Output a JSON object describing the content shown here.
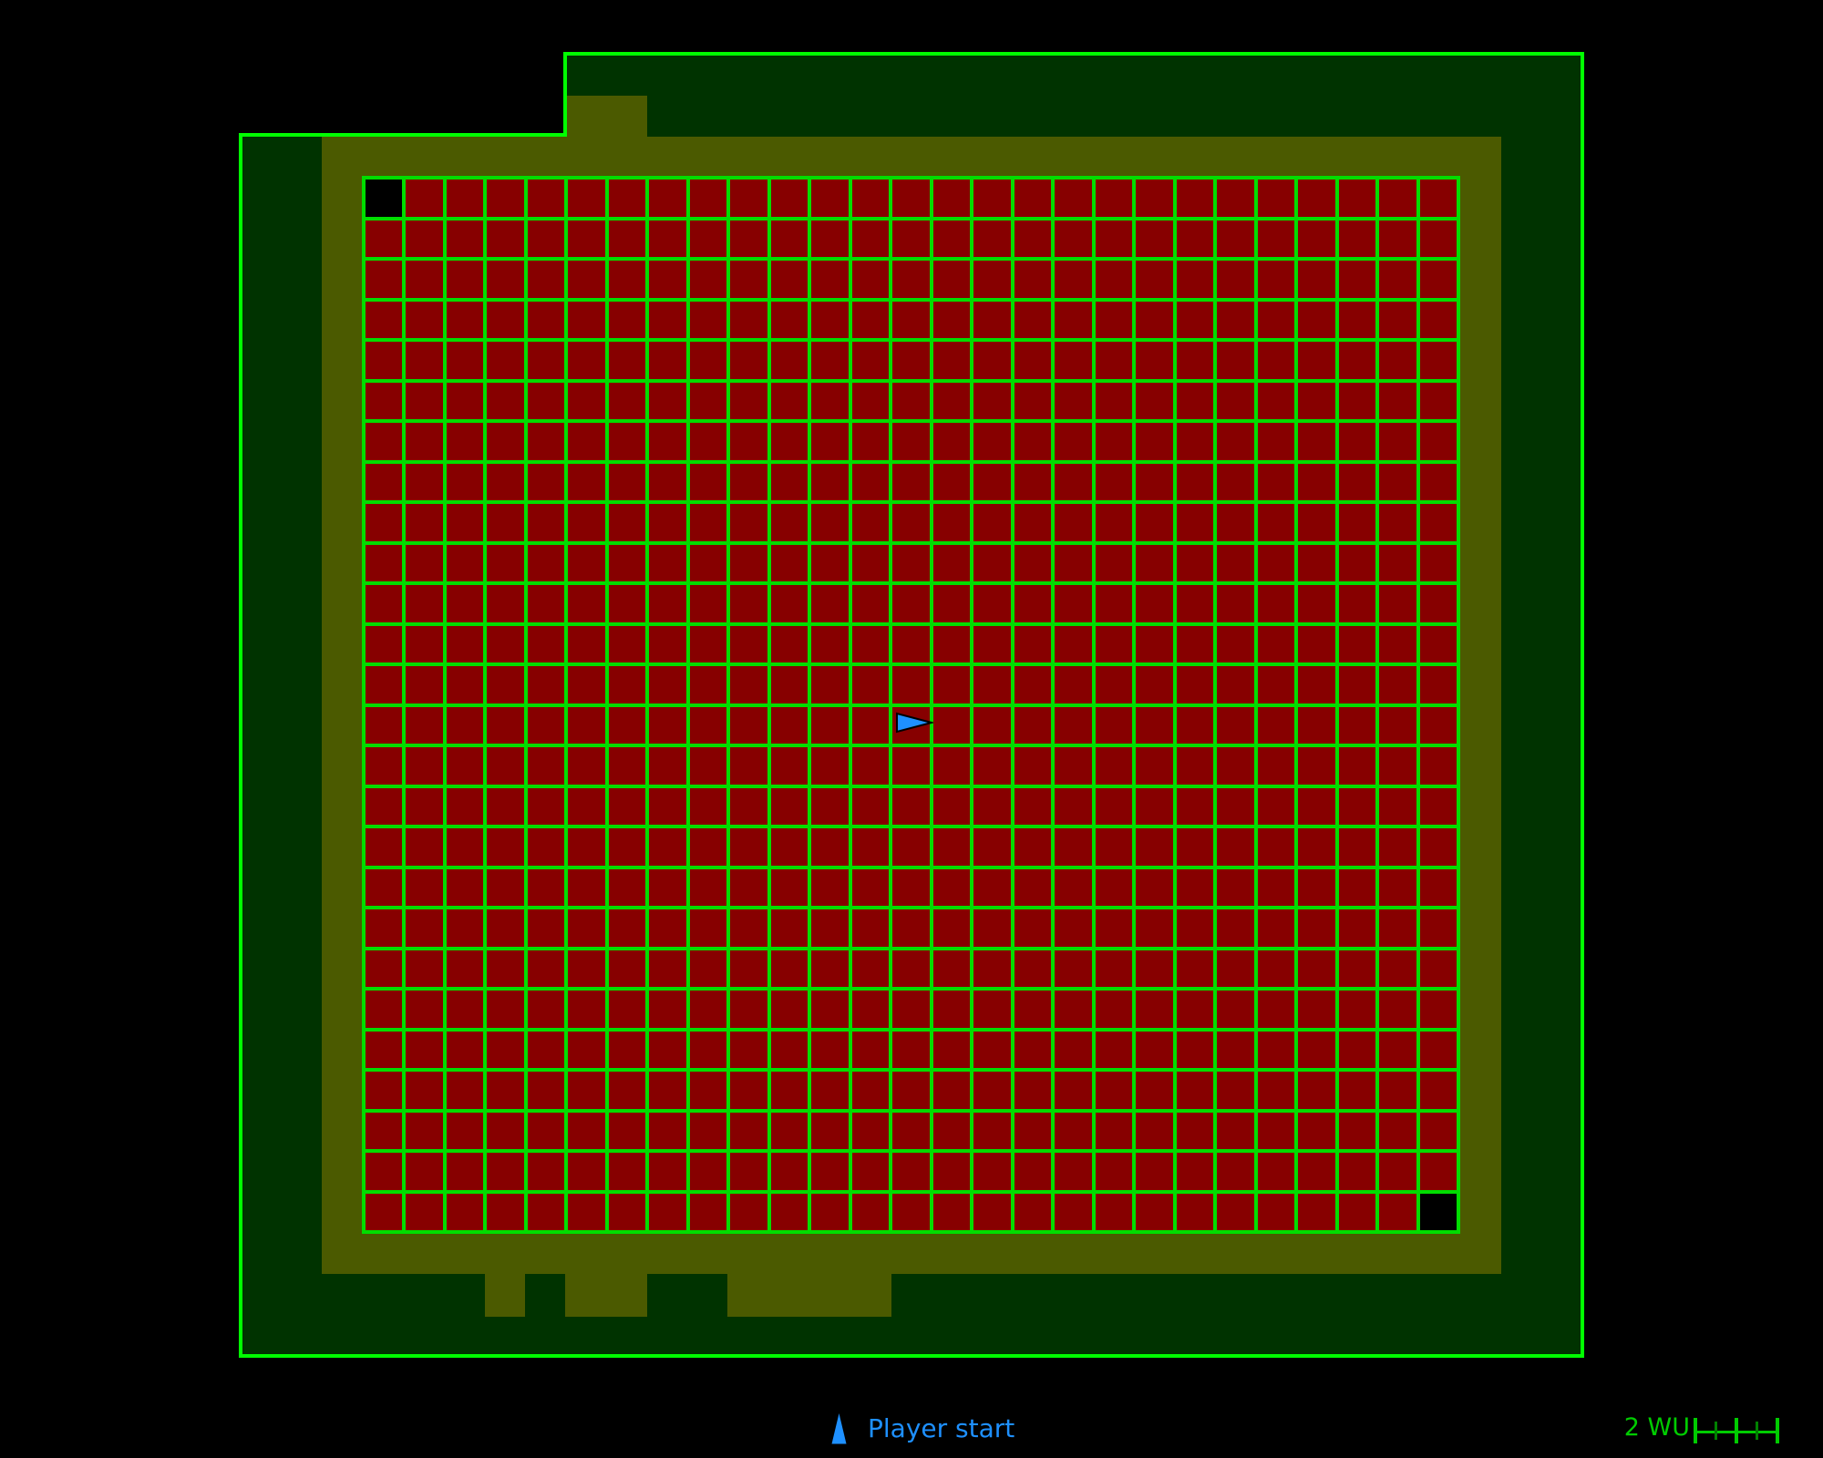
{
  "palette": {
    "background": "#000000",
    "outline_green": "#00FF00",
    "fill_dark_green": "#003300",
    "olive": "#4B5A00",
    "grid_line_green": "#00DD00",
    "cell_red": "#870000",
    "cell_black": "#000000",
    "player_blue": "#1E90FF",
    "scale_green": "#00CC00",
    "scale_tick_dim": "#008000"
  },
  "map": {
    "grid": {
      "columns": 27,
      "rows": 26,
      "black_cells": [
        [
          0,
          0
        ],
        [
          25,
          26
        ]
      ]
    },
    "player_marker": {
      "shape": "right-pointing-triangle",
      "color": "#1E90FF"
    }
  },
  "legend": {
    "icon": "player-start-triangle-icon",
    "label": "Player start"
  },
  "scale_bar": {
    "label": "2 WU",
    "tick_count": 5
  }
}
